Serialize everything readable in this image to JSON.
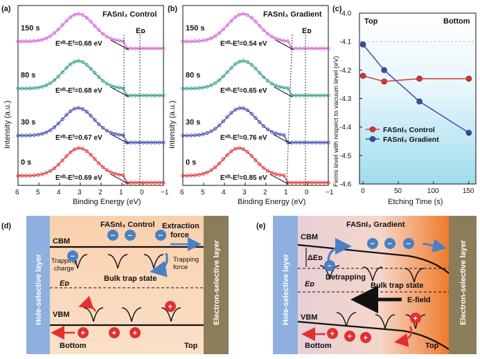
{
  "panels": {
    "a": {
      "tag": "(a)",
      "title": "FASnI₃ Control",
      "xlabel": "Binding Energy (eV)",
      "ylabel": "Intensity (a.u.)",
      "x_ticks": [
        "6",
        "5",
        "4",
        "3",
        "2",
        "1",
        "0",
        "−1"
      ],
      "ef_label": "Eᴅ",
      "times": [
        "150 s",
        "80 s",
        "30 s",
        "0 s"
      ],
      "evb": [
        "Eᵛᴮ-Eᶠ=0.68 eV",
        "Eᵛᴮ-Eᶠ=0.68 eV",
        "Eᵛᴮ-Eᶠ=0.67 eV",
        "Eᵛᴮ-Eᶠ=0.69 eV"
      ],
      "colors": [
        "#d35fd3",
        "#2e9a8e",
        "#3a48b0",
        "#e03030"
      ]
    },
    "b": {
      "tag": "(b)",
      "title": "FASnI₃ Gradient",
      "xlabel": "Binding Energy (eV)",
      "ylabel": "Intensity (a.u.)",
      "x_ticks": [
        "6",
        "5",
        "4",
        "3",
        "2",
        "1",
        "0",
        "−1"
      ],
      "ef_label": "Eᴅ",
      "times": [
        "150 s",
        "80 s",
        "30 s",
        "0 s"
      ],
      "evb": [
        "Eᵛᴮ-Eᶠ=0.54 eV",
        "Eᵛᴮ-Eᶠ=0.65 eV",
        "Eᵛᴮ-Eᶠ=0.76 eV",
        "Eᵛᴮ-Eᶠ=0.85 eV"
      ],
      "colors": [
        "#d35fd3",
        "#2e9a8e",
        "#3a48b0",
        "#e03030"
      ]
    },
    "c": {
      "tag": "(c)",
      "ylabel": "Fermi level with respect to vacuum level (eV)",
      "xlabel": "Etching Time (s)",
      "top_label": "Top",
      "bottom_label": "Bottom"
    },
    "d": {
      "tag": "(d)",
      "title": "FASnI₃ Control",
      "left_layer": "Hole-selective layer",
      "right_layer": "Electron-selective layer",
      "cbm": "CBM",
      "vbm": "VBM",
      "ef": "Eᴅ",
      "extraction": "Extraction force",
      "trapping_charge": "Trapping charge",
      "trapping_force": "Trapping force",
      "bulk_trap": "Bulk trap state",
      "bottom": "Bottom",
      "top": "Top"
    },
    "e": {
      "tag": "(e)",
      "title": "FASnI₃ Gradient",
      "left_layer": "Hole-selective layer",
      "right_layer": "Electron-selective layer",
      "cbm": "CBM",
      "vbm": "VBM",
      "ef": "Eᴅ",
      "delta_ef": "ΔEᴅ",
      "detrapping": "Detrapping",
      "bulk_trap": "Bulk trap state",
      "efield": "E-field",
      "bottom": "Bottom",
      "top": "Top"
    }
  },
  "chart_data": [
    {
      "type": "line",
      "panel": "c",
      "title": "",
      "xlabel": "Etching Time (s)",
      "ylabel": "Fermi level with respect to vacuum level (eV)",
      "xlim": [
        -5,
        160
      ],
      "ylim": [
        -4.6,
        -4.0
      ],
      "x_ticks": [
        0,
        50,
        100,
        150
      ],
      "y_ticks": [
        -4.6,
        -4.5,
        -4.4,
        -4.3,
        -4.2,
        -4.1,
        -4.0
      ],
      "legend_position": "lower-left",
      "series": [
        {
          "name": "FASnI₃ Control",
          "color": "#e03030",
          "x": [
            0,
            30,
            80,
            150
          ],
          "y": [
            -4.22,
            -4.24,
            -4.23,
            -4.23
          ]
        },
        {
          "name": "FASnI₃ Gradient",
          "color": "#3a48b0",
          "x": [
            0,
            30,
            80,
            150
          ],
          "y": [
            -4.11,
            -4.2,
            -4.31,
            -4.42
          ]
        }
      ]
    }
  ]
}
